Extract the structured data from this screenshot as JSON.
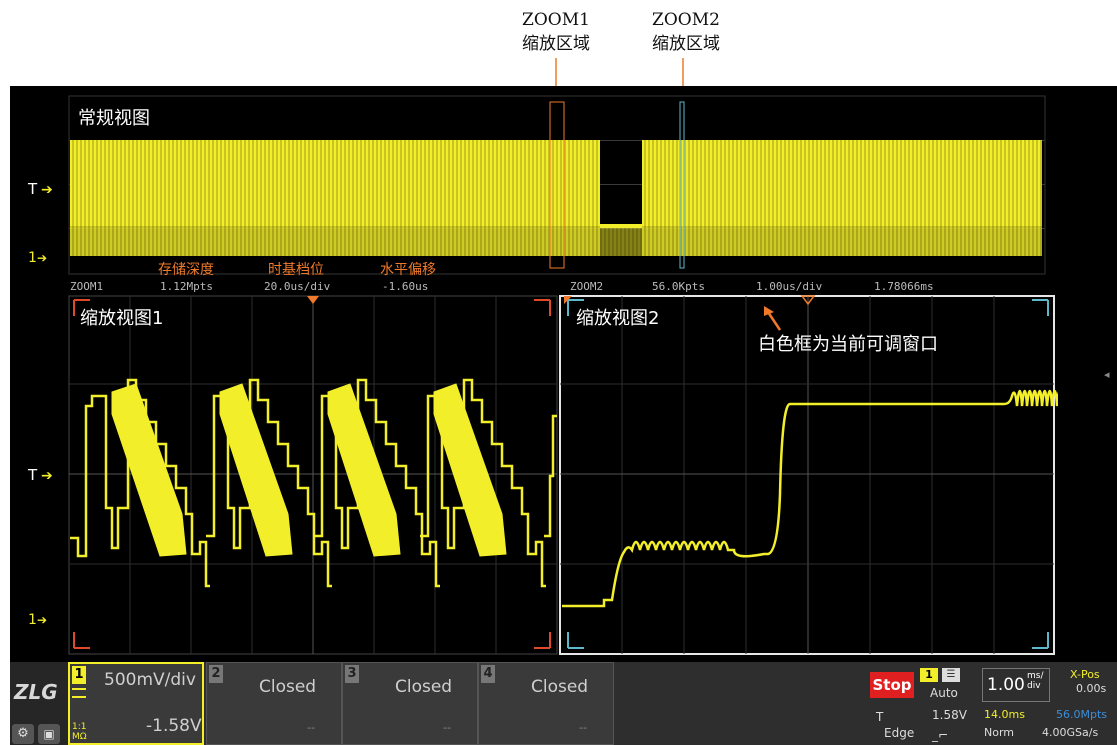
{
  "captions": {
    "zoom1_title": "ZOOM1",
    "zoom1_sub": "缩放区域",
    "zoom2_title": "ZOOM2",
    "zoom2_sub": "缩放区域"
  },
  "overview": {
    "title": "常规视图",
    "trigger_marker": "T",
    "ch1_marker": "1",
    "annotations": {
      "depth": "存储深度",
      "timebase": "时基档位",
      "offset": "水平偏移"
    },
    "zoom1_info": {
      "label": "ZOOM1",
      "depth": "1.12Mpts",
      "timebase": "20.0us/div",
      "offset": "-1.60us"
    },
    "zoom2_info": {
      "label": "ZOOM2",
      "depth": "56.0Kpts",
      "timebase": "1.00us/div",
      "offset": "1.78066ms"
    }
  },
  "zoom1": {
    "title": "缩放视图1",
    "trigger_marker": "T",
    "ch1_marker": "1"
  },
  "zoom2": {
    "title": "缩放视图2",
    "note": "白色框为当前可调窗口"
  },
  "bottom": {
    "logo": "ZLG",
    "ch1": {
      "num": "1",
      "scale": "500mV/div",
      "offset": "-1.58V",
      "coupling": "1:1",
      "mode": "MΩ"
    },
    "ch2": {
      "num": "2",
      "status": "Closed",
      "dashes": "--"
    },
    "ch3": {
      "num": "3",
      "status": "Closed",
      "dashes": "--"
    },
    "ch4": {
      "num": "4",
      "status": "Closed",
      "dashes": "--"
    },
    "run_state": "Stop",
    "trigger": {
      "source": "1",
      "mode": "Auto",
      "level_label": "T",
      "level": "1.58V",
      "type": "Edge"
    },
    "timebase": {
      "value": "1.00",
      "unit_top": "ms/",
      "unit_bottom": "div",
      "xpos_label": "X-Pos",
      "xpos": "0.00s"
    },
    "acq": {
      "length": "14.0ms",
      "depth": "56.0Mpts",
      "mode": "Norm",
      "rate": "4.00GSa/s"
    }
  },
  "colors": {
    "trace": "#f2ef2a",
    "orange": "#f07a2a",
    "cyan": "#5fb8c8",
    "background": "#000000"
  }
}
